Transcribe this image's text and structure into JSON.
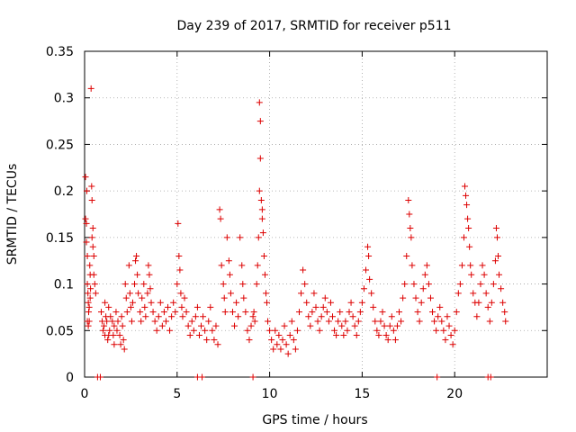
{
  "chart_data": {
    "type": "scatter",
    "title": "Day 239 of 2017, SRMTID for receiver p511",
    "xlabel": "GPS time / hours",
    "ylabel": "SRMTID / TECUs",
    "xlim": [
      0,
      25
    ],
    "ylim": [
      0,
      0.35
    ],
    "x_ticks": [
      0,
      5,
      10,
      15,
      20
    ],
    "x_tick_labels": [
      "0",
      "5",
      "10",
      "15",
      "20"
    ],
    "y_ticks": [
      0,
      0.05,
      0.1,
      0.15,
      0.2,
      0.25,
      0.3,
      0.35
    ],
    "y_tick_labels": [
      "0",
      "0.05",
      "0.1",
      "0.15",
      "0.2",
      "0.25",
      "0.3",
      "0.35"
    ],
    "grid": true,
    "marker": "+",
    "color": "#dd0000",
    "series": [
      {
        "name": "SRMTID",
        "points": [
          [
            0.05,
            0.215
          ],
          [
            0.05,
            0.17
          ],
          [
            0.1,
            0.165
          ],
          [
            0.1,
            0.145
          ],
          [
            0.12,
            0.2
          ],
          [
            0.15,
            0.13
          ],
          [
            0.15,
            0.1
          ],
          [
            0.18,
            0.09
          ],
          [
            0.2,
            0.08
          ],
          [
            0.22,
            0.07
          ],
          [
            0.25,
            0.06
          ],
          [
            0.28,
            0.12
          ],
          [
            0.3,
            0.11
          ],
          [
            0.32,
            0.095
          ],
          [
            0.35,
            0.31
          ],
          [
            0.38,
            0.205
          ],
          [
            0.4,
            0.19
          ],
          [
            0.4,
            0.15
          ],
          [
            0.45,
            0.16
          ],
          [
            0.45,
            0.14
          ],
          [
            0.5,
            0.13
          ],
          [
            0.5,
            0.11
          ],
          [
            0.55,
            0.1
          ],
          [
            0.6,
            0.09
          ],
          [
            0.15,
            0.06
          ],
          [
            0.2,
            0.055
          ],
          [
            0.25,
            0.075
          ],
          [
            0.3,
            0.085
          ],
          [
            0.9,
            0.07
          ],
          [
            0.95,
            0.06
          ],
          [
            1.0,
            0.05
          ],
          [
            1.05,
            0.055
          ],
          [
            1.1,
            0.045
          ],
          [
            1.15,
            0.065
          ],
          [
            1.2,
            0.06
          ],
          [
            1.25,
            0.04
          ],
          [
            1.3,
            0.075
          ],
          [
            1.35,
            0.05
          ],
          [
            1.4,
            0.065
          ],
          [
            1.5,
            0.06
          ],
          [
            1.55,
            0.045
          ],
          [
            1.6,
            0.055
          ],
          [
            1.7,
            0.07
          ],
          [
            1.75,
            0.05
          ],
          [
            1.8,
            0.06
          ],
          [
            1.9,
            0.045
          ],
          [
            1.95,
            0.035
          ],
          [
            2.0,
            0.065
          ],
          [
            2.05,
            0.055
          ],
          [
            2.1,
            0.04
          ],
          [
            2.15,
            0.03
          ],
          [
            1.1,
            0.08
          ],
          [
            1.3,
            0.045
          ],
          [
            1.6,
            0.035
          ],
          [
            2.2,
            0.1
          ],
          [
            2.25,
            0.085
          ],
          [
            2.3,
            0.07
          ],
          [
            2.4,
            0.12
          ],
          [
            2.45,
            0.09
          ],
          [
            2.5,
            0.075
          ],
          [
            2.55,
            0.06
          ],
          [
            2.6,
            0.08
          ],
          [
            2.7,
            0.1
          ],
          [
            2.75,
            0.125
          ],
          [
            2.8,
            0.13
          ],
          [
            2.85,
            0.11
          ],
          [
            2.9,
            0.09
          ],
          [
            3.0,
            0.07
          ],
          [
            3.05,
            0.06
          ],
          [
            3.1,
            0.085
          ],
          [
            3.2,
            0.1
          ],
          [
            3.25,
            0.075
          ],
          [
            3.3,
            0.065
          ],
          [
            3.4,
            0.09
          ],
          [
            3.45,
            0.12
          ],
          [
            3.5,
            0.11
          ],
          [
            3.55,
            0.095
          ],
          [
            3.6,
            0.08
          ],
          [
            3.7,
            0.07
          ],
          [
            3.8,
            0.06
          ],
          [
            3.9,
            0.05
          ],
          [
            4.0,
            0.065
          ],
          [
            4.1,
            0.08
          ],
          [
            4.2,
            0.055
          ],
          [
            4.3,
            0.07
          ],
          [
            4.4,
            0.06
          ],
          [
            4.5,
            0.075
          ],
          [
            4.6,
            0.05
          ],
          [
            4.7,
            0.065
          ],
          [
            4.8,
            0.08
          ],
          [
            4.9,
            0.07
          ],
          [
            5.0,
            0.1
          ],
          [
            5.05,
            0.165
          ],
          [
            5.1,
            0.13
          ],
          [
            5.15,
            0.115
          ],
          [
            5.2,
            0.09
          ],
          [
            5.25,
            0.075
          ],
          [
            5.3,
            0.065
          ],
          [
            5.4,
            0.085
          ],
          [
            5.5,
            0.07
          ],
          [
            5.6,
            0.055
          ],
          [
            5.7,
            0.045
          ],
          [
            5.8,
            0.06
          ],
          [
            5.9,
            0.05
          ],
          [
            6.0,
            0.065
          ],
          [
            6.1,
            0.075
          ],
          [
            6.2,
            0.045
          ],
          [
            6.3,
            0.055
          ],
          [
            6.4,
            0.065
          ],
          [
            6.5,
            0.05
          ],
          [
            6.6,
            0.04
          ],
          [
            6.7,
            0.06
          ],
          [
            6.8,
            0.075
          ],
          [
            6.9,
            0.05
          ],
          [
            7.0,
            0.04
          ],
          [
            7.1,
            0.055
          ],
          [
            7.2,
            0.035
          ],
          [
            7.3,
            0.18
          ],
          [
            7.35,
            0.17
          ],
          [
            7.4,
            0.12
          ],
          [
            7.5,
            0.1
          ],
          [
            7.55,
            0.085
          ],
          [
            7.6,
            0.07
          ],
          [
            7.7,
            0.15
          ],
          [
            7.8,
            0.125
          ],
          [
            7.85,
            0.11
          ],
          [
            7.9,
            0.09
          ],
          [
            8.0,
            0.07
          ],
          [
            8.1,
            0.055
          ],
          [
            8.2,
            0.08
          ],
          [
            8.3,
            0.065
          ],
          [
            8.4,
            0.15
          ],
          [
            8.5,
            0.12
          ],
          [
            8.55,
            0.1
          ],
          [
            8.6,
            0.085
          ],
          [
            8.7,
            0.07
          ],
          [
            8.8,
            0.05
          ],
          [
            8.9,
            0.04
          ],
          [
            9.0,
            0.055
          ],
          [
            9.1,
            0.065
          ],
          [
            9.15,
            0.07
          ],
          [
            9.2,
            0.06
          ],
          [
            9.3,
            0.1
          ],
          [
            9.35,
            0.12
          ],
          [
            9.4,
            0.15
          ],
          [
            9.45,
            0.2
          ],
          [
            9.45,
            0.295
          ],
          [
            9.5,
            0.275
          ],
          [
            9.5,
            0.235
          ],
          [
            9.55,
            0.19
          ],
          [
            9.6,
            0.17
          ],
          [
            9.6,
            0.18
          ],
          [
            9.65,
            0.155
          ],
          [
            9.7,
            0.13
          ],
          [
            9.75,
            0.11
          ],
          [
            9.8,
            0.09
          ],
          [
            9.85,
            0.08
          ],
          [
            9.9,
            0.06
          ],
          [
            10.0,
            0.05
          ],
          [
            10.1,
            0.04
          ],
          [
            10.2,
            0.03
          ],
          [
            10.3,
            0.05
          ],
          [
            10.4,
            0.035
          ],
          [
            10.5,
            0.045
          ],
          [
            10.6,
            0.03
          ],
          [
            10.7,
            0.04
          ],
          [
            10.8,
            0.055
          ],
          [
            10.9,
            0.035
          ],
          [
            11.0,
            0.025
          ],
          [
            11.1,
            0.045
          ],
          [
            11.2,
            0.06
          ],
          [
            11.3,
            0.04
          ],
          [
            11.4,
            0.03
          ],
          [
            11.5,
            0.05
          ],
          [
            11.6,
            0.07
          ],
          [
            11.7,
            0.09
          ],
          [
            11.8,
            0.115
          ],
          [
            11.9,
            0.1
          ],
          [
            12.0,
            0.08
          ],
          [
            12.1,
            0.065
          ],
          [
            12.2,
            0.055
          ],
          [
            12.3,
            0.07
          ],
          [
            12.4,
            0.09
          ],
          [
            12.5,
            0.075
          ],
          [
            12.6,
            0.06
          ],
          [
            12.7,
            0.05
          ],
          [
            12.8,
            0.065
          ],
          [
            12.9,
            0.075
          ],
          [
            13.0,
            0.085
          ],
          [
            13.1,
            0.07
          ],
          [
            13.2,
            0.06
          ],
          [
            13.3,
            0.08
          ],
          [
            13.4,
            0.065
          ],
          [
            13.5,
            0.05
          ],
          [
            13.6,
            0.045
          ],
          [
            13.7,
            0.06
          ],
          [
            13.8,
            0.07
          ],
          [
            13.9,
            0.055
          ],
          [
            14.0,
            0.045
          ],
          [
            14.1,
            0.06
          ],
          [
            14.2,
            0.05
          ],
          [
            14.3,
            0.07
          ],
          [
            14.4,
            0.08
          ],
          [
            14.5,
            0.065
          ],
          [
            14.6,
            0.055
          ],
          [
            14.7,
            0.045
          ],
          [
            14.8,
            0.06
          ],
          [
            14.9,
            0.07
          ],
          [
            15.0,
            0.08
          ],
          [
            15.1,
            0.095
          ],
          [
            15.2,
            0.115
          ],
          [
            15.3,
            0.14
          ],
          [
            15.35,
            0.13
          ],
          [
            15.4,
            0.105
          ],
          [
            15.5,
            0.09
          ],
          [
            15.6,
            0.075
          ],
          [
            15.7,
            0.06
          ],
          [
            15.8,
            0.05
          ],
          [
            15.9,
            0.045
          ],
          [
            16.0,
            0.06
          ],
          [
            16.1,
            0.07
          ],
          [
            16.2,
            0.055
          ],
          [
            16.3,
            0.045
          ],
          [
            16.4,
            0.04
          ],
          [
            16.5,
            0.055
          ],
          [
            16.6,
            0.065
          ],
          [
            16.7,
            0.05
          ],
          [
            16.8,
            0.04
          ],
          [
            16.9,
            0.055
          ],
          [
            17.0,
            0.07
          ],
          [
            17.1,
            0.06
          ],
          [
            17.2,
            0.085
          ],
          [
            17.3,
            0.1
          ],
          [
            17.4,
            0.13
          ],
          [
            17.5,
            0.19
          ],
          [
            17.55,
            0.175
          ],
          [
            17.6,
            0.16
          ],
          [
            17.65,
            0.15
          ],
          [
            17.7,
            0.12
          ],
          [
            17.8,
            0.1
          ],
          [
            17.9,
            0.085
          ],
          [
            18.0,
            0.07
          ],
          [
            18.1,
            0.06
          ],
          [
            18.2,
            0.08
          ],
          [
            18.3,
            0.095
          ],
          [
            18.4,
            0.11
          ],
          [
            18.5,
            0.12
          ],
          [
            18.6,
            0.1
          ],
          [
            18.7,
            0.085
          ],
          [
            18.8,
            0.07
          ],
          [
            18.9,
            0.06
          ],
          [
            19.0,
            0.05
          ],
          [
            19.1,
            0.065
          ],
          [
            19.2,
            0.075
          ],
          [
            19.3,
            0.06
          ],
          [
            19.4,
            0.05
          ],
          [
            19.5,
            0.04
          ],
          [
            19.6,
            0.065
          ],
          [
            19.7,
            0.055
          ],
          [
            19.8,
            0.045
          ],
          [
            19.9,
            0.035
          ],
          [
            20.0,
            0.05
          ],
          [
            20.1,
            0.07
          ],
          [
            20.2,
            0.09
          ],
          [
            20.3,
            0.1
          ],
          [
            20.4,
            0.12
          ],
          [
            20.5,
            0.15
          ],
          [
            20.55,
            0.205
          ],
          [
            20.6,
            0.195
          ],
          [
            20.65,
            0.185
          ],
          [
            20.7,
            0.17
          ],
          [
            20.75,
            0.16
          ],
          [
            20.8,
            0.14
          ],
          [
            20.85,
            0.12
          ],
          [
            20.9,
            0.11
          ],
          [
            21.0,
            0.09
          ],
          [
            21.1,
            0.08
          ],
          [
            21.2,
            0.065
          ],
          [
            21.3,
            0.08
          ],
          [
            21.4,
            0.1
          ],
          [
            21.5,
            0.12
          ],
          [
            21.6,
            0.11
          ],
          [
            21.7,
            0.09
          ],
          [
            21.8,
            0.075
          ],
          [
            21.9,
            0.06
          ],
          [
            22.0,
            0.08
          ],
          [
            22.1,
            0.1
          ],
          [
            22.2,
            0.125
          ],
          [
            22.25,
            0.16
          ],
          [
            22.3,
            0.15
          ],
          [
            22.35,
            0.13
          ],
          [
            22.4,
            0.11
          ],
          [
            22.5,
            0.095
          ],
          [
            22.6,
            0.08
          ],
          [
            22.7,
            0.07
          ],
          [
            22.75,
            0.06
          ]
        ]
      },
      {
        "name": "baseline markers",
        "points": [
          [
            0.7,
            0
          ],
          [
            0.85,
            0
          ],
          [
            6.1,
            0
          ],
          [
            6.35,
            0
          ],
          [
            9.1,
            0
          ],
          [
            19.05,
            0
          ],
          [
            21.8,
            0
          ],
          [
            21.95,
            0
          ]
        ]
      }
    ]
  }
}
